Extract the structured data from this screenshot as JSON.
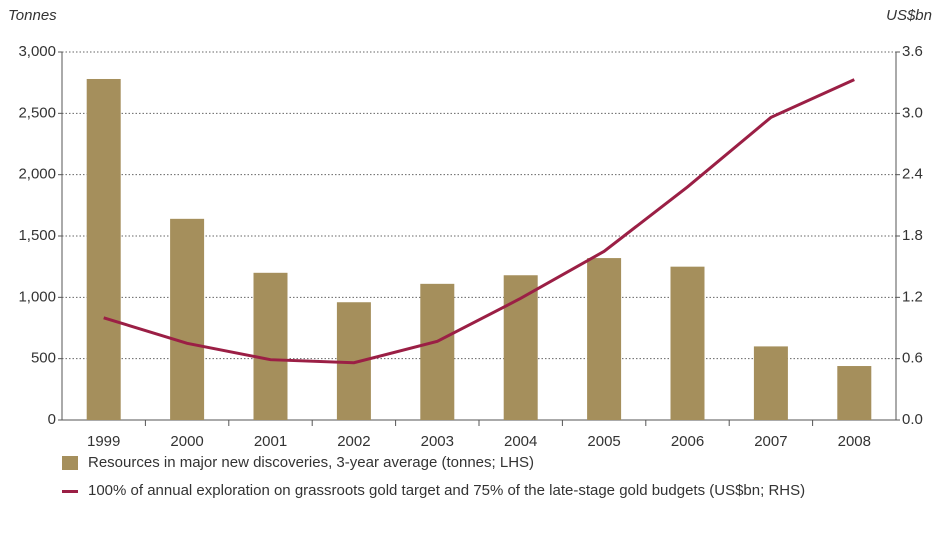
{
  "chart_data": {
    "type": "bar",
    "ylabel": "Tonnes",
    "y2label": "US$bn",
    "categories": [
      "1999",
      "2000",
      "2001",
      "2002",
      "2003",
      "2004",
      "2005",
      "2006",
      "2007",
      "2008"
    ],
    "series": [
      {
        "name": "Resources in major new discoveries, 3-year average (tonnes; LHS)",
        "type": "bar",
        "color": "#a58f5c",
        "values": [
          2780,
          1640,
          1200,
          960,
          1110,
          1180,
          1320,
          1250,
          600,
          440
        ]
      },
      {
        "name": "100% of annual exploration on grassroots gold target and 75% of the late-stage gold budgets (US$bn; RHS)",
        "type": "line",
        "axis": "y2",
        "color": "#9b1f45",
        "values": [
          1.0,
          0.75,
          0.59,
          0.56,
          0.77,
          1.19,
          1.65,
          2.28,
          2.96,
          3.33
        ]
      }
    ],
    "ylim": [
      0,
      3000
    ],
    "yticks": [
      0,
      {
        "value": 500,
        "label": "500"
      },
      {
        "value": 1000,
        "label": "1,000"
      },
      {
        "value": 1500,
        "label": "1,500"
      },
      {
        "value": 2000,
        "label": "2,000"
      },
      {
        "value": 2500,
        "label": "2,500"
      },
      {
        "value": 3000,
        "label": "3,000"
      }
    ],
    "y2lim": [
      0,
      3.6
    ],
    "y2ticks": [
      {
        "value": 0,
        "label": "0.0"
      },
      0.6,
      1.2,
      1.8,
      2.4,
      {
        "value": 3,
        "label": "3.0"
      },
      3.6
    ],
    "grid": true
  }
}
